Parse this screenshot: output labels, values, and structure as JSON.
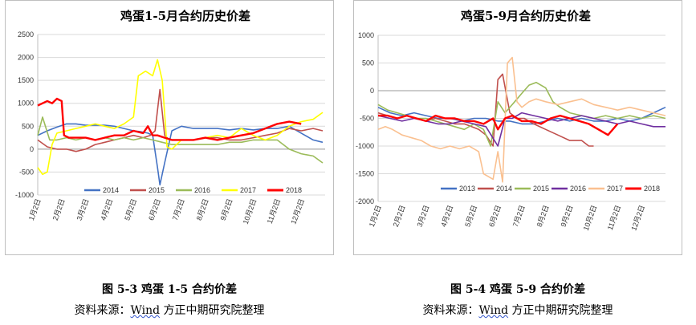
{
  "chart_data": [
    {
      "type": "line",
      "title": "鸡蛋1-5月合约历史价差",
      "ylim": [
        -1000,
        2500
      ],
      "yticks": [
        "2500",
        "2000",
        "1500",
        "1000",
        "500",
        "0",
        "-500",
        "-1000"
      ],
      "xticks": [
        "1月2日",
        "2月2日",
        "3月2日",
        "4月2日",
        "5月2日",
        "6月2日",
        "7月2日",
        "8月2日",
        "9月2日",
        "10月2日",
        "11月2日",
        "12月2日"
      ],
      "legend_position": "bottom-inside",
      "series": [
        {
          "name": "2014",
          "color": "#4472c4",
          "x": [
            0.0,
            0.4,
            0.8,
            1.2,
            1.6,
            2.0,
            2.4,
            2.8,
            3.2,
            3.6,
            4.0,
            4.3,
            4.6,
            4.8,
            5.0,
            5.1,
            5.3,
            5.6,
            6.0,
            6.5,
            7.0,
            7.5,
            8.0,
            8.5,
            9.0,
            9.5,
            10.0,
            10.5,
            11.0,
            11.5,
            11.9
          ],
          "values": [
            300,
            400,
            480,
            550,
            550,
            520,
            520,
            520,
            500,
            450,
            400,
            380,
            350,
            300,
            -400,
            -780,
            -300,
            400,
            500,
            450,
            450,
            450,
            420,
            450,
            420,
            450,
            450,
            500,
            350,
            200,
            150
          ]
        },
        {
          "name": "2015",
          "color": "#c0504d",
          "x": [
            0.0,
            0.4,
            0.8,
            1.2,
            1.6,
            2.0,
            2.4,
            2.8,
            3.2,
            3.6,
            4.0,
            4.4,
            4.7,
            4.9,
            5.1,
            5.3,
            5.5,
            6.0,
            6.5,
            7.0,
            7.5,
            8.0,
            8.5,
            9.0,
            9.5,
            10.0,
            10.5,
            11.0,
            11.5,
            11.9
          ],
          "values": [
            200,
            50,
            0,
            0,
            -50,
            0,
            100,
            150,
            200,
            250,
            300,
            250,
            300,
            400,
            1300,
            300,
            200,
            200,
            200,
            250,
            250,
            200,
            200,
            250,
            300,
            350,
            450,
            400,
            450,
            400
          ]
        },
        {
          "name": "2016",
          "color": "#9bbb59",
          "x": [
            0.0,
            0.2,
            0.5,
            0.8,
            1.2,
            1.6,
            2.0,
            2.4,
            2.8,
            3.2,
            3.6,
            4.0,
            4.4,
            4.8,
            5.2,
            5.6,
            6.0,
            6.5,
            7.0,
            7.5,
            8.0,
            8.5,
            9.0,
            9.5,
            10.0,
            10.5,
            11.0,
            11.5,
            11.9
          ],
          "values": [
            300,
            700,
            200,
            200,
            250,
            200,
            250,
            200,
            250,
            200,
            250,
            200,
            250,
            200,
            150,
            100,
            100,
            100,
            100,
            100,
            150,
            150,
            200,
            200,
            200,
            0,
            -100,
            -150,
            -300
          ]
        },
        {
          "name": "2017",
          "color": "#ffff00",
          "x": [
            0.0,
            0.2,
            0.4,
            0.6,
            0.8,
            1.2,
            1.6,
            2.0,
            2.4,
            2.8,
            3.2,
            3.6,
            4.0,
            4.2,
            4.5,
            4.8,
            5.0,
            5.2,
            5.4,
            5.6,
            5.8,
            6.0,
            6.5,
            7.0,
            7.5,
            8.0,
            8.5,
            9.0,
            9.5,
            10.0,
            10.5,
            11.0,
            11.5,
            11.9
          ],
          "values": [
            -400,
            -550,
            -500,
            100,
            350,
            400,
            450,
            500,
            550,
            500,
            450,
            550,
            700,
            1600,
            1700,
            1600,
            1950,
            1500,
            50,
            0,
            100,
            200,
            200,
            250,
            300,
            250,
            450,
            300,
            200,
            300,
            500,
            600,
            650,
            800
          ]
        },
        {
          "name": "2018",
          "color": "#ff0000",
          "x": [
            0.0,
            0.2,
            0.4,
            0.6,
            0.8,
            1.0,
            1.1,
            1.3,
            1.6,
            2.0,
            2.4,
            2.8,
            3.2,
            3.6,
            4.0,
            4.4,
            4.6,
            4.8,
            5.0,
            5.3,
            5.6,
            6.0,
            6.5,
            7.0,
            7.5,
            8.0,
            8.5,
            9.0,
            9.5,
            10.0,
            10.5,
            11.0
          ],
          "values": [
            950,
            1000,
            1050,
            1000,
            1100,
            1050,
            300,
            250,
            250,
            250,
            200,
            250,
            300,
            300,
            400,
            350,
            500,
            300,
            300,
            250,
            200,
            200,
            200,
            250,
            200,
            250,
            300,
            350,
            450,
            550,
            600,
            550
          ]
        }
      ]
    },
    {
      "type": "line",
      "title": "鸡蛋5-9月合约历史价差",
      "ylim": [
        -2000,
        1000
      ],
      "yticks": [
        "1000",
        "500",
        "0",
        "-500",
        "-1000",
        "-1500",
        "-2000"
      ],
      "xticks": [
        "1月2日",
        "2月2日",
        "3月2日",
        "4月2日",
        "5月2日",
        "6月2日",
        "7月2日",
        "8月2日",
        "9月2日",
        "10月2日",
        "11月2日",
        "12月2日"
      ],
      "legend_position": "bottom-inside",
      "series": [
        {
          "name": "2013",
          "color": "#4472c4",
          "x": [
            0.0,
            0.5,
            1.0,
            1.5,
            2.0,
            2.5,
            3.0,
            3.5,
            4.0,
            4.5,
            5.0,
            5.5,
            6.0,
            6.5,
            7.0,
            7.5,
            8.0,
            8.5,
            9.0,
            9.5,
            10.0,
            10.5,
            11.0,
            11.5,
            12.0
          ],
          "values": [
            -300,
            -400,
            -450,
            -400,
            -450,
            -500,
            -500,
            -550,
            -500,
            -500,
            -550,
            -550,
            -600,
            -600,
            -550,
            -500,
            -550,
            -500,
            -550,
            -550,
            -500,
            -550,
            -500,
            -400,
            -300
          ]
        },
        {
          "name": "2014",
          "color": "#c0504d",
          "x": [
            0.0,
            0.4,
            0.8,
            1.2,
            1.6,
            2.0,
            2.4,
            2.8,
            3.2,
            3.6,
            3.9,
            4.2,
            4.5,
            4.8,
            5.0,
            5.2,
            5.5,
            5.8,
            6.1,
            6.5,
            7.0,
            7.5,
            8.0,
            8.5,
            8.8,
            9.0
          ],
          "values": [
            -400,
            -450,
            -500,
            -450,
            -500,
            -550,
            -500,
            -550,
            -600,
            -600,
            -650,
            -700,
            -800,
            -1000,
            200,
            300,
            -400,
            -500,
            -500,
            -600,
            -700,
            -800,
            -900,
            -900,
            -1000,
            -1000
          ]
        },
        {
          "name": "2015",
          "color": "#9bbb59",
          "x": [
            0.0,
            0.4,
            0.8,
            1.2,
            1.6,
            2.0,
            2.4,
            2.8,
            3.2,
            3.6,
            4.0,
            4.4,
            4.7,
            5.0,
            5.3,
            5.7,
            6.0,
            6.3,
            6.6,
            7.0,
            7.3,
            7.6,
            8.0,
            8.5,
            9.0,
            9.5,
            10.0,
            10.5,
            11.0,
            11.5,
            12.0
          ],
          "values": [
            -250,
            -350,
            -400,
            -450,
            -500,
            -500,
            -550,
            -600,
            -650,
            -700,
            -600,
            -700,
            -1000,
            -200,
            -400,
            -200,
            -50,
            100,
            150,
            50,
            -200,
            -300,
            -400,
            -450,
            -500,
            -450,
            -500,
            -450,
            -500,
            -450,
            -500
          ]
        },
        {
          "name": "2016",
          "color": "#7030a0",
          "x": [
            0.0,
            0.5,
            1.0,
            1.5,
            2.0,
            2.5,
            3.0,
            3.5,
            4.0,
            4.5,
            5.0,
            5.3,
            5.6,
            6.0,
            6.5,
            7.0,
            7.5,
            8.0,
            8.5,
            9.0,
            9.5,
            10.0,
            10.5,
            11.0,
            11.5,
            12.0
          ],
          "values": [
            -450,
            -500,
            -550,
            -500,
            -550,
            -600,
            -600,
            -550,
            -600,
            -650,
            -1000,
            -500,
            -500,
            -400,
            -450,
            -500,
            -550,
            -500,
            -450,
            -500,
            -550,
            -600,
            -550,
            -600,
            -650,
            -650
          ]
        },
        {
          "name": "2017",
          "color": "#fac090",
          "x": [
            0.0,
            0.3,
            0.6,
            1.0,
            1.4,
            1.8,
            2.2,
            2.6,
            3.0,
            3.4,
            3.8,
            4.0,
            4.2,
            4.4,
            4.6,
            4.8,
            5.0,
            5.2,
            5.4,
            5.6,
            5.8,
            6.0,
            6.3,
            6.6,
            7.0,
            7.5,
            8.0,
            8.5,
            9.0,
            9.5,
            10.0,
            10.5,
            11.0,
            11.5,
            12.0
          ],
          "values": [
            -700,
            -650,
            -700,
            -800,
            -850,
            -900,
            -1000,
            -1050,
            -1000,
            -1050,
            -1000,
            -1050,
            -1100,
            -1500,
            -1550,
            -1600,
            -1100,
            -1650,
            500,
            600,
            -200,
            -300,
            -200,
            -150,
            -200,
            -250,
            -200,
            -150,
            -250,
            -300,
            -350,
            -300,
            -350,
            -400,
            -450
          ]
        },
        {
          "name": "2018",
          "color": "#ff0000",
          "x": [
            0.0,
            0.4,
            0.8,
            1.2,
            1.6,
            2.0,
            2.4,
            2.8,
            3.2,
            3.6,
            4.0,
            4.4,
            4.8,
            5.0,
            5.3,
            5.6,
            6.0,
            6.4,
            6.8,
            7.2,
            7.6,
            8.0,
            8.4,
            8.8,
            9.2,
            9.6,
            10.0
          ],
          "values": [
            -450,
            -450,
            -500,
            -450,
            -500,
            -550,
            -450,
            -500,
            -500,
            -550,
            -550,
            -600,
            -500,
            -700,
            -500,
            -450,
            -550,
            -550,
            -600,
            -500,
            -450,
            -500,
            -550,
            -600,
            -700,
            -800,
            -600
          ]
        }
      ]
    }
  ],
  "captions": {
    "left": {
      "title": "图 5-3  鸡蛋 1-5 合约价差",
      "source_prefix": "资料来源：",
      "source_org": "Wind",
      "source_rest": "  方正中期研究院整理"
    },
    "right": {
      "title": "图 5-4  鸡蛋 5-9 合约价差",
      "source_prefix": "资料来源：",
      "source_org": "Wind",
      "source_rest": "  方正中期研究院整理"
    }
  }
}
